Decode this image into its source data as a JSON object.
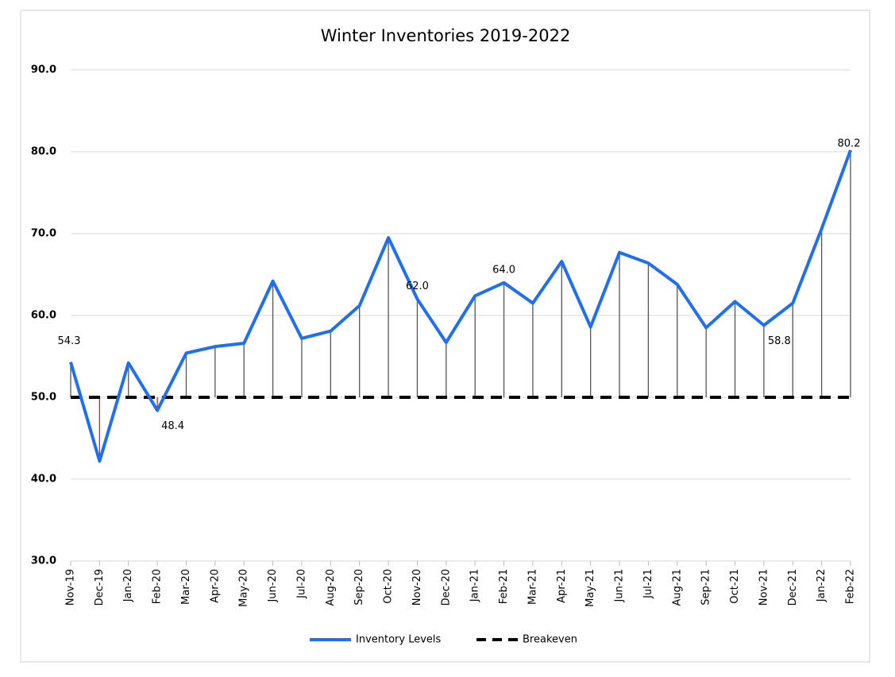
{
  "chart_data": {
    "type": "line",
    "title": "Winter Inventories 2019-2022",
    "categories": [
      "Nov-19",
      "Dec-19",
      "Jan-20",
      "Feb-20",
      "Mar-20",
      "Apr-20",
      "May-20",
      "Jun-20",
      "Jul-20",
      "Aug-20",
      "Sep-20",
      "Oct-20",
      "Nov-20",
      "Dec-20",
      "Jan-21",
      "Feb-21",
      "Mar-21",
      "Apr-21",
      "May-21",
      "Jun-21",
      "Jul-21",
      "Aug-21",
      "Sep-21",
      "Oct-21",
      "Nov-21",
      "Dec-21",
      "Jan-22",
      "Feb-22"
    ],
    "series": [
      {
        "name": "Inventory Levels",
        "color": "#1f6ff2",
        "dash": false,
        "values": [
          54.3,
          42.2,
          54.2,
          48.4,
          55.4,
          56.2,
          56.6,
          64.2,
          57.2,
          58.1,
          61.2,
          69.5,
          62.0,
          56.7,
          62.4,
          64.0,
          61.5,
          66.6,
          58.6,
          67.7,
          66.4,
          63.8,
          58.5,
          61.7,
          58.8,
          61.5,
          70.6,
          80.2
        ],
        "value_labels": [
          "54.3",
          null,
          null,
          "48.4",
          null,
          null,
          null,
          null,
          null,
          null,
          null,
          null,
          "62.0",
          null,
          null,
          "64.0",
          null,
          null,
          null,
          null,
          null,
          null,
          null,
          null,
          "58.8",
          null,
          null,
          "80.2"
        ]
      },
      {
        "name": "Breakeven",
        "color": "#000000",
        "dash": true,
        "values": [
          50,
          50,
          50,
          50,
          50,
          50,
          50,
          50,
          50,
          50,
          50,
          50,
          50,
          50,
          50,
          50,
          50,
          50,
          50,
          50,
          50,
          50,
          50,
          50,
          50,
          50,
          50,
          50
        ]
      }
    ],
    "drop_lines": true,
    "drop_line_color": "#555555",
    "drop_line_below_color": "#e02020",
    "ylim": [
      30,
      90
    ],
    "yticks": [
      {
        "value": 30,
        "label": "30.0"
      },
      {
        "value": 40,
        "label": "40.0"
      },
      {
        "value": 50,
        "label": "50.0"
      },
      {
        "value": 60,
        "label": "60.0"
      },
      {
        "value": 70,
        "label": "70.0"
      },
      {
        "value": 80,
        "label": "80.0"
      },
      {
        "value": 90,
        "label": "90.0"
      }
    ],
    "grid": true,
    "legend": "bottom"
  }
}
